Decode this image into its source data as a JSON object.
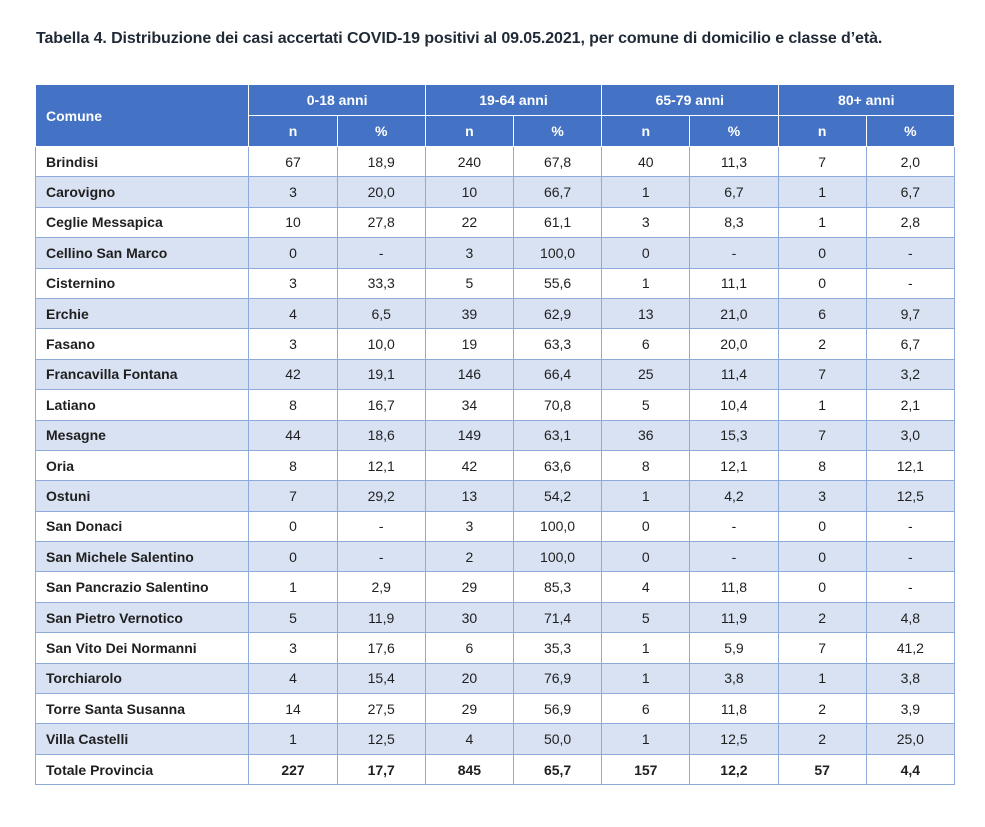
{
  "caption": "Tabella 4. Distribuzione dei casi accertati COVID-19 positivi al 09.05.2021, per comune di domicilio e classe d’età.",
  "headers": {
    "comune": "Comune",
    "groups": [
      "0-18 anni",
      "19-64 anni",
      "65-79 anni",
      "80+ anni"
    ],
    "n": "n",
    "pct": "%"
  },
  "rows": [
    {
      "comune": "Brindisi",
      "values": [
        "67",
        "18,9",
        "240",
        "67,8",
        "40",
        "11,3",
        "7",
        "2,0"
      ]
    },
    {
      "comune": "Carovigno",
      "values": [
        "3",
        "20,0",
        "10",
        "66,7",
        "1",
        "6,7",
        "1",
        "6,7"
      ]
    },
    {
      "comune": "Ceglie Messapica",
      "values": [
        "10",
        "27,8",
        "22",
        "61,1",
        "3",
        "8,3",
        "1",
        "2,8"
      ]
    },
    {
      "comune": "Cellino San Marco",
      "values": [
        "0",
        "-",
        "3",
        "100,0",
        "0",
        "-",
        "0",
        "-"
      ]
    },
    {
      "comune": "Cisternino",
      "values": [
        "3",
        "33,3",
        "5",
        "55,6",
        "1",
        "11,1",
        "0",
        "-"
      ]
    },
    {
      "comune": "Erchie",
      "values": [
        "4",
        "6,5",
        "39",
        "62,9",
        "13",
        "21,0",
        "6",
        "9,7"
      ]
    },
    {
      "comune": "Fasano",
      "values": [
        "3",
        "10,0",
        "19",
        "63,3",
        "6",
        "20,0",
        "2",
        "6,7"
      ]
    },
    {
      "comune": "Francavilla Fontana",
      "values": [
        "42",
        "19,1",
        "146",
        "66,4",
        "25",
        "11,4",
        "7",
        "3,2"
      ]
    },
    {
      "comune": "Latiano",
      "values": [
        "8",
        "16,7",
        "34",
        "70,8",
        "5",
        "10,4",
        "1",
        "2,1"
      ]
    },
    {
      "comune": "Mesagne",
      "values": [
        "44",
        "18,6",
        "149",
        "63,1",
        "36",
        "15,3",
        "7",
        "3,0"
      ]
    },
    {
      "comune": "Oria",
      "values": [
        "8",
        "12,1",
        "42",
        "63,6",
        "8",
        "12,1",
        "8",
        "12,1"
      ]
    },
    {
      "comune": "Ostuni",
      "values": [
        "7",
        "29,2",
        "13",
        "54,2",
        "1",
        "4,2",
        "3",
        "12,5"
      ]
    },
    {
      "comune": "San Donaci",
      "values": [
        "0",
        "-",
        "3",
        "100,0",
        "0",
        "-",
        "0",
        "-"
      ]
    },
    {
      "comune": "San Michele Salentino",
      "values": [
        "0",
        "-",
        "2",
        "100,0",
        "0",
        "-",
        "0",
        "-"
      ]
    },
    {
      "comune": "San Pancrazio Salentino",
      "values": [
        "1",
        "2,9",
        "29",
        "85,3",
        "4",
        "11,8",
        "0",
        "-"
      ]
    },
    {
      "comune": "San Pietro Vernotico",
      "values": [
        "5",
        "11,9",
        "30",
        "71,4",
        "5",
        "11,9",
        "2",
        "4,8"
      ]
    },
    {
      "comune": "San Vito Dei Normanni",
      "values": [
        "3",
        "17,6",
        "6",
        "35,3",
        "1",
        "5,9",
        "7",
        "41,2"
      ]
    },
    {
      "comune": "Torchiarolo",
      "values": [
        "4",
        "15,4",
        "20",
        "76,9",
        "1",
        "3,8",
        "1",
        "3,8"
      ]
    },
    {
      "comune": "Torre Santa Susanna",
      "values": [
        "14",
        "27,5",
        "29",
        "56,9",
        "6",
        "11,8",
        "2",
        "3,9"
      ]
    },
    {
      "comune": "Villa Castelli",
      "values": [
        "1",
        "12,5",
        "4",
        "50,0",
        "1",
        "12,5",
        "2",
        "25,0"
      ]
    }
  ],
  "total": {
    "comune": "Totale Provincia",
    "values": [
      "227",
      "17,7",
      "845",
      "65,7",
      "157",
      "12,2",
      "57",
      "4,4"
    ]
  }
}
